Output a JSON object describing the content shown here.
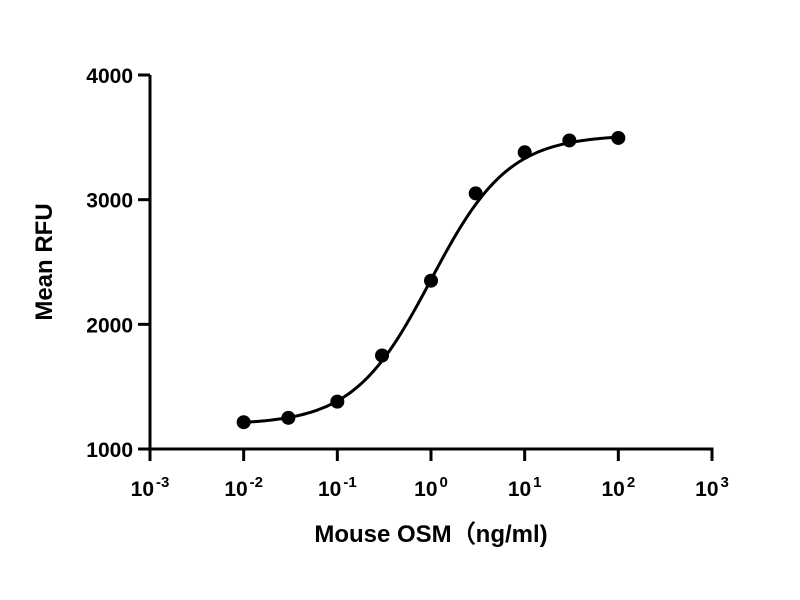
{
  "chart_data": {
    "type": "scatter",
    "title": "",
    "xlabel": "Mouse OSM（ng/ml)",
    "ylabel": "Mean RFU",
    "xscale": "log",
    "xlim": [
      0.001,
      1000
    ],
    "ylim": [
      1000,
      4000
    ],
    "x_ticks": [
      {
        "value": 0.001,
        "base": "10",
        "exp": "-3"
      },
      {
        "value": 0.01,
        "base": "10",
        "exp": "-2"
      },
      {
        "value": 0.1,
        "base": "10",
        "exp": "-1"
      },
      {
        "value": 1,
        "base": "10",
        "exp": "0"
      },
      {
        "value": 10,
        "base": "10",
        "exp": "1"
      },
      {
        "value": 100,
        "base": "10",
        "exp": "2"
      },
      {
        "value": 1000,
        "base": "10",
        "exp": "3"
      }
    ],
    "y_ticks": [
      {
        "value": 1000,
        "label": "1000"
      },
      {
        "value": 2000,
        "label": "2000"
      },
      {
        "value": 3000,
        "label": "3000"
      },
      {
        "value": 4000,
        "label": "4000"
      }
    ],
    "grid": false,
    "legend": "none",
    "series": [
      {
        "points": [
          {
            "x": 0.01,
            "y": 1215
          },
          {
            "x": 0.03,
            "y": 1250
          },
          {
            "x": 0.1,
            "y": 1380
          },
          {
            "x": 0.3,
            "y": 1750
          },
          {
            "x": 1,
            "y": 2350
          },
          {
            "x": 3,
            "y": 3050
          },
          {
            "x": 10,
            "y": 3380
          },
          {
            "x": 30,
            "y": 3475
          },
          {
            "x": 100,
            "y": 3495
          }
        ],
        "fit": {
          "model": "4PL",
          "bottom": 1195,
          "top": 3520,
          "ec50": 1.0,
          "hill": 1.05
        },
        "color": "#000000"
      }
    ]
  }
}
